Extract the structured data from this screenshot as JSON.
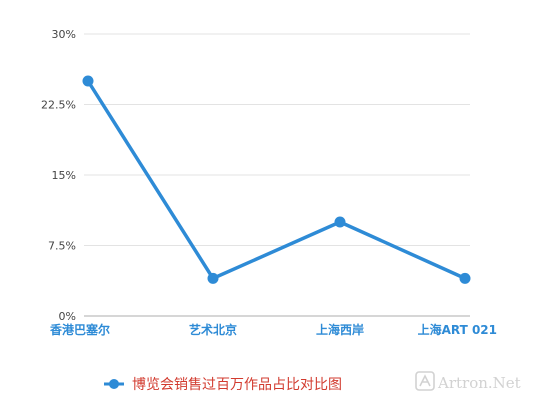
{
  "chart_data": {
    "type": "line",
    "categories": [
      "香港巴塞尔",
      "艺术北京",
      "上海西岸",
      "上海ART 021"
    ],
    "series": [
      {
        "name": "博览会销售过百万作品占比对比图",
        "values": [
          25,
          4,
          10,
          4
        ]
      }
    ],
    "y_ticks": [
      0,
      7.5,
      15,
      22.5,
      30
    ],
    "y_tick_labels": [
      "0%",
      "7.5%",
      "15%",
      "22.5%",
      "30%"
    ],
    "ylim": [
      0,
      30
    ],
    "grid": true,
    "legend": "bottom-center",
    "colors": {
      "series": "#2e8bd6",
      "legend_text": "#d23b2f",
      "grid": "#e3e3e3",
      "axis": "#bdbdbd"
    }
  },
  "watermark": {
    "text": "Artron.Net"
  }
}
